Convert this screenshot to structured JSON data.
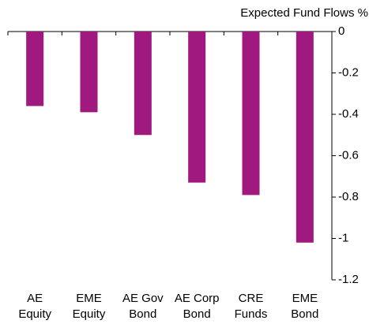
{
  "chart_data": {
    "type": "bar",
    "title": "Expected Fund Flows %",
    "categories": [
      "AE\nEquity",
      "EME\nEquity",
      "AE Gov\nBond",
      "AE Corp\nBond",
      "CRE\nFunds",
      "EME\nBond"
    ],
    "values": [
      -0.36,
      -0.39,
      -0.5,
      -0.73,
      -0.79,
      -1.02
    ],
    "color": "#a0197f",
    "ylim": [
      -1.2,
      0
    ],
    "yticks": [
      0,
      -0.2,
      -0.4,
      -0.6,
      -0.8,
      -1,
      -1.2
    ],
    "grid": false
  }
}
